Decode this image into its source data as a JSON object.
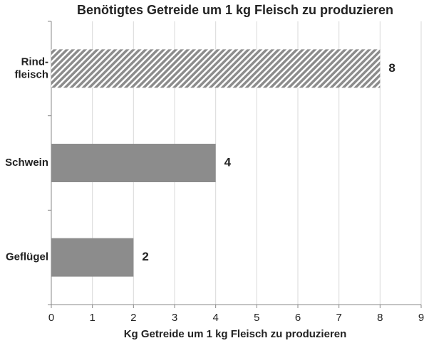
{
  "chart_data": {
    "type": "bar",
    "orientation": "horizontal",
    "title": "Benötigtes Getreide um 1 kg Fleisch zu produzieren",
    "x_label": "Kg Getreide um 1 kg Fleisch zu produzieren",
    "categories": [
      "Rind-\nfleisch",
      "Schwein",
      "Geflügel"
    ],
    "values": [
      8,
      4,
      2
    ],
    "colors": [
      "#8c8c8c",
      "#8c8c8c",
      "#8c8c8c"
    ],
    "hatch": [
      true,
      false,
      false
    ],
    "xlim": [
      0,
      9
    ],
    "xticks": [
      0,
      1,
      2,
      3,
      4,
      5,
      6,
      7,
      8,
      9
    ],
    "grid": true
  }
}
